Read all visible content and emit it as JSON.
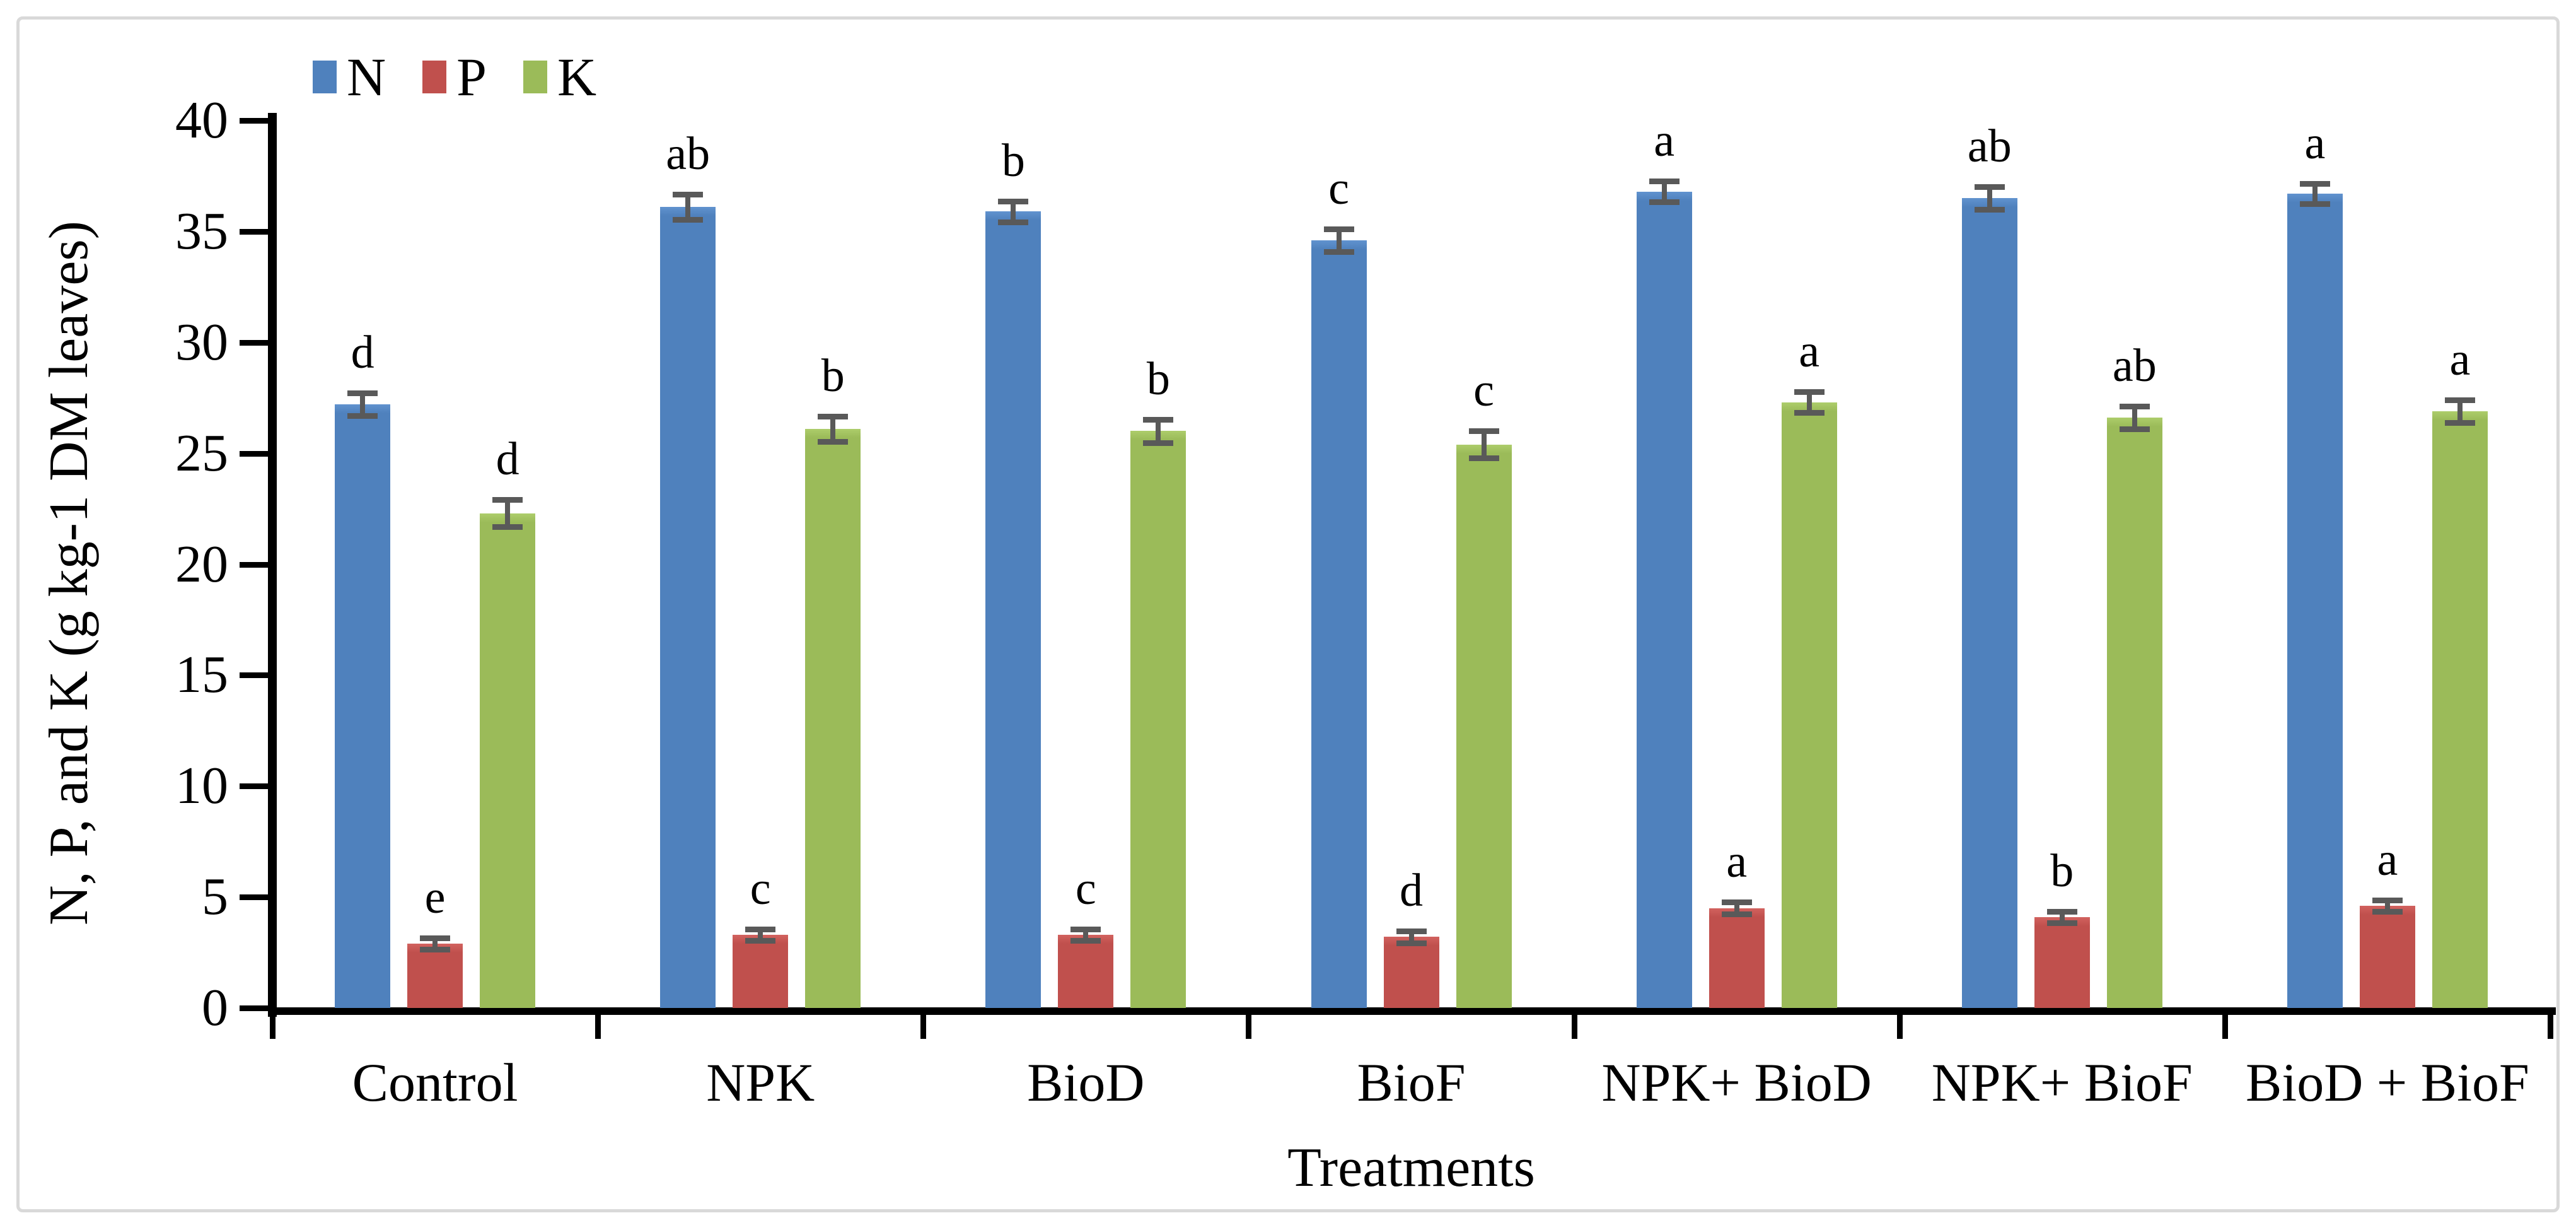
{
  "page": {
    "background": "#ffffff",
    "frame_border_color": "#d9d9d9",
    "axis_color": "#000000",
    "error_bar_color": "#595959"
  },
  "chart_data": {
    "type": "bar",
    "title": "",
    "xlabel": "Treatments",
    "ylabel": "N, P, and K (g kg-1 DM leaves)",
    "ylim": [
      0,
      40
    ],
    "ytick_step": 5,
    "yticks": [
      "0",
      "5",
      "10",
      "15",
      "20",
      "25",
      "30",
      "35",
      "40"
    ],
    "grid": false,
    "legend_position": "top-left",
    "error_bars": true,
    "categories": [
      "Control",
      "NPK",
      "BioD",
      "BioF",
      "NPK+ BioD",
      "NPK+ BioF",
      "BioD + BioF"
    ],
    "series": [
      {
        "name": "N",
        "color": "#4F81BD",
        "values": [
          27.2,
          36.1,
          35.9,
          34.6,
          36.8,
          36.5,
          36.7
        ],
        "errors": [
          0.4,
          0.45,
          0.35,
          0.4,
          0.35,
          0.4,
          0.35
        ],
        "letters": [
          "d",
          "ab",
          "b",
          "c",
          "a",
          "ab",
          "a"
        ]
      },
      {
        "name": "P",
        "color": "#C0504D",
        "values": [
          2.9,
          3.3,
          3.3,
          3.2,
          4.5,
          4.1,
          4.6
        ],
        "errors": [
          0.15,
          0.15,
          0.15,
          0.15,
          0.15,
          0.15,
          0.15
        ],
        "letters": [
          "e",
          "c",
          "c",
          "d",
          "a",
          "b",
          "a"
        ]
      },
      {
        "name": "K",
        "color": "#9BBB59",
        "values": [
          22.3,
          26.1,
          26.0,
          25.4,
          27.3,
          26.6,
          26.9
        ],
        "errors": [
          0.5,
          0.45,
          0.4,
          0.5,
          0.35,
          0.4,
          0.4
        ],
        "letters": [
          "d",
          "b",
          "b",
          "c",
          "a",
          "ab",
          "a"
        ]
      }
    ]
  }
}
